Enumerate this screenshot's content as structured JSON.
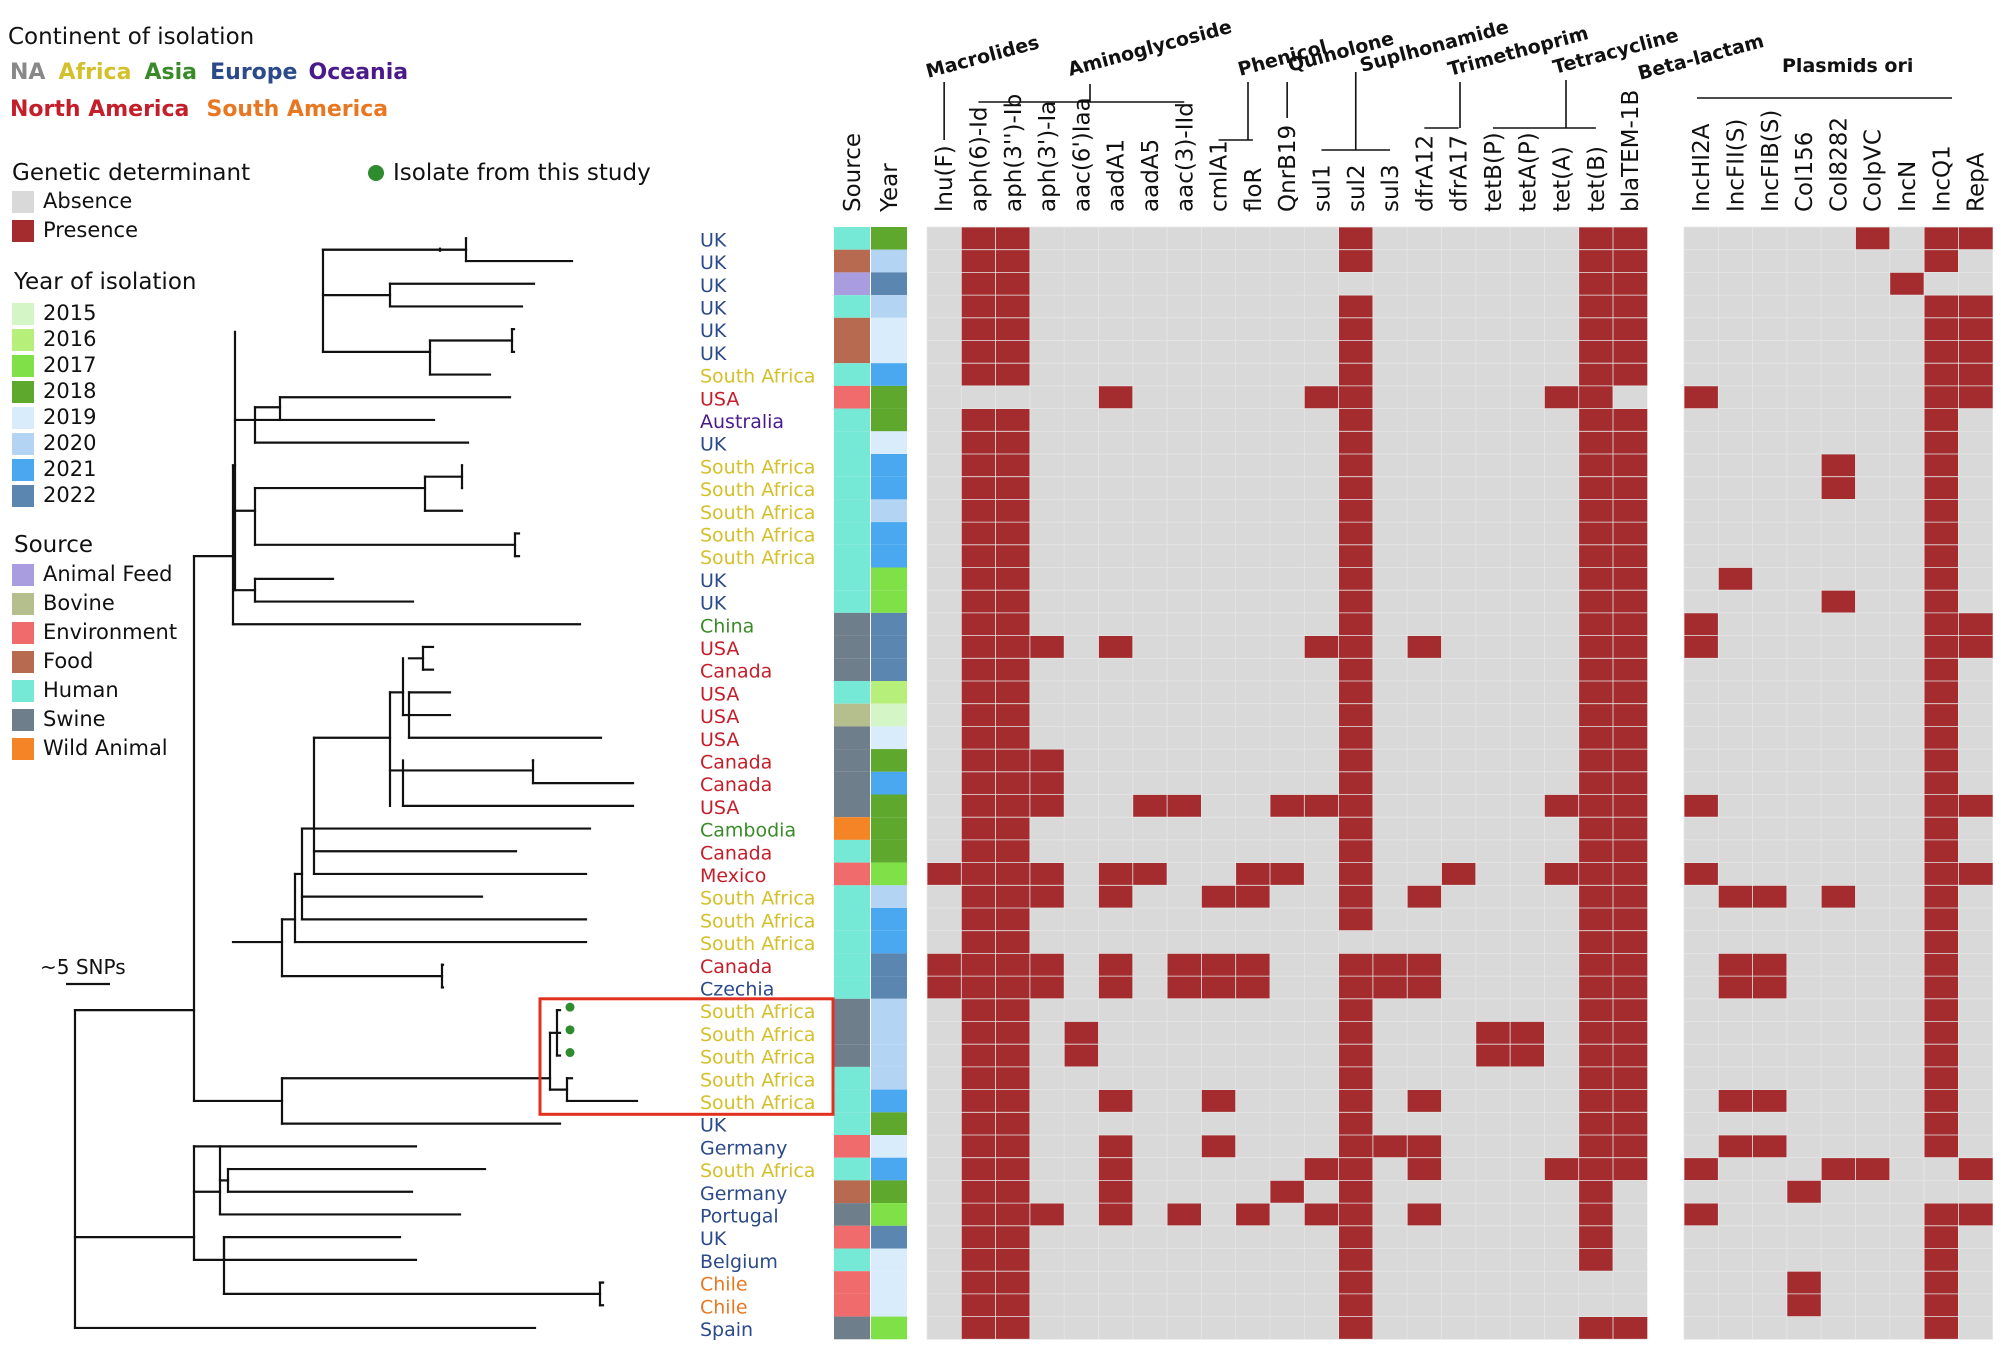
{
  "legend": {
    "continent_title": "Continent of isolation",
    "continents": [
      {
        "name": "NA",
        "color": "#888888"
      },
      {
        "name": "Africa",
        "color": "#d4c02a"
      },
      {
        "name": "Asia",
        "color": "#3a8a2a"
      },
      {
        "name": "Europe",
        "color": "#2b4a8a"
      },
      {
        "name": "Oceania",
        "color": "#4a1a8a"
      },
      {
        "name": "North America",
        "color": "#c41e2a"
      },
      {
        "name": "South America",
        "color": "#e87722"
      }
    ],
    "determinant_title": "Genetic determinant",
    "determinants": [
      {
        "name": "Absence",
        "color": "#d9d9d9"
      },
      {
        "name": "Presence",
        "color": "#a42c2f"
      }
    ],
    "isolate_label": "Isolate from this study",
    "year_title": "Year of isolation",
    "years": [
      {
        "name": "2015",
        "color": "#d4f5c6"
      },
      {
        "name": "2016",
        "color": "#b6f07a"
      },
      {
        "name": "2017",
        "color": "#7fe048"
      },
      {
        "name": "2018",
        "color": "#5ea82e"
      },
      {
        "name": "2019",
        "color": "#d8ecfb"
      },
      {
        "name": "2020",
        "color": "#b4d4f4"
      },
      {
        "name": "2021",
        "color": "#4aa8f0"
      },
      {
        "name": "2022",
        "color": "#5a86b0"
      }
    ],
    "source_title": "Source",
    "sources": [
      {
        "name": "Animal Feed",
        "color": "#a99cdf"
      },
      {
        "name": "Bovine",
        "color": "#b5bf8e"
      },
      {
        "name": "Environment",
        "color": "#f06b6b"
      },
      {
        "name": "Food",
        "color": "#b86a50"
      },
      {
        "name": "Human",
        "color": "#76e8d6"
      },
      {
        "name": "Swine",
        "color": "#6e7e8a"
      },
      {
        "name": "Wild Animal",
        "color": "#f58426"
      }
    ],
    "scale_label": "~5 SNPs"
  },
  "heatmap": {
    "col_source_label": "Source",
    "col_year_label": "Year",
    "genes": [
      "lnu(F)",
      "aph(6)-Id",
      "aph(3'')-Ib",
      "aph(3')-Ia",
      "aac(6')Iaa",
      "aadA1",
      "aadA5",
      "aac(3)-IId",
      "cmlA1",
      "floR",
      "QnrB19",
      "sul1",
      "sul2",
      "sul3",
      "dfrA12",
      "dfrA17",
      "tetB(P)",
      "tetA(P)",
      "tet(A)",
      "tet(B)",
      "blaTEM-1B",
      "IncHI2A",
      "IncFII(S)",
      "IncFIB(S)",
      "Col156",
      "Col8282",
      "ColpVC",
      "IncN",
      "IncQ1",
      "RepA"
    ],
    "groups": [
      {
        "label": "Macrolides"
      },
      {
        "label": "Aminoglycoside"
      },
      {
        "label": "Phenicol"
      },
      {
        "label": "Quinolone"
      },
      {
        "label": "Suplhonamide"
      },
      {
        "label": "Trimethoprim"
      },
      {
        "label": "Tetracycline"
      },
      {
        "label": "Beta-lactam"
      },
      {
        "label": "Plasmids ori"
      }
    ]
  },
  "isolates": [
    {
      "country": "UK",
      "continent": "Europe",
      "source": "Human",
      "year": "2018",
      "from_study": false,
      "genes": [
        1,
        2,
        12,
        19,
        20,
        26,
        28,
        29
      ]
    },
    {
      "country": "UK",
      "continent": "Europe",
      "source": "Food",
      "year": "2020",
      "from_study": false,
      "genes": [
        1,
        2,
        12,
        19,
        20,
        28
      ]
    },
    {
      "country": "UK",
      "continent": "Europe",
      "source": "Animal Feed",
      "year": "2022",
      "from_study": false,
      "genes": [
        1,
        2,
        19,
        20,
        27
      ]
    },
    {
      "country": "UK",
      "continent": "Europe",
      "source": "Human",
      "year": "2020",
      "from_study": false,
      "genes": [
        1,
        2,
        12,
        19,
        20,
        28,
        29
      ]
    },
    {
      "country": "UK",
      "continent": "Europe",
      "source": "Food",
      "year": "2019",
      "from_study": false,
      "genes": [
        1,
        2,
        12,
        19,
        20,
        28,
        29
      ]
    },
    {
      "country": "UK",
      "continent": "Europe",
      "source": "Food",
      "year": "2019",
      "from_study": false,
      "genes": [
        1,
        2,
        12,
        19,
        20,
        28,
        29
      ]
    },
    {
      "country": "South Africa",
      "continent": "Africa",
      "source": "Human",
      "year": "2021",
      "from_study": false,
      "genes": [
        1,
        2,
        12,
        19,
        20,
        28,
        29
      ]
    },
    {
      "country": "USA",
      "continent": "North America",
      "source": "Environment",
      "year": "2018",
      "from_study": false,
      "genes": [
        5,
        11,
        12,
        18,
        19,
        21,
        28,
        29
      ]
    },
    {
      "country": "Australia",
      "continent": "Oceania",
      "source": "Human",
      "year": "2018",
      "from_study": false,
      "genes": [
        1,
        2,
        12,
        19,
        20,
        28
      ]
    },
    {
      "country": "UK",
      "continent": "Europe",
      "source": "Human",
      "year": "2019",
      "from_study": false,
      "genes": [
        1,
        2,
        12,
        19,
        20,
        28
      ]
    },
    {
      "country": "South Africa",
      "continent": "Africa",
      "source": "Human",
      "year": "2021",
      "from_study": false,
      "genes": [
        1,
        2,
        12,
        19,
        20,
        25,
        28
      ]
    },
    {
      "country": "South Africa",
      "continent": "Africa",
      "source": "Human",
      "year": "2021",
      "from_study": false,
      "genes": [
        1,
        2,
        12,
        19,
        20,
        25,
        28
      ]
    },
    {
      "country": "South Africa",
      "continent": "Africa",
      "source": "Human",
      "year": "2020",
      "from_study": false,
      "genes": [
        1,
        2,
        12,
        19,
        20,
        28
      ]
    },
    {
      "country": "South Africa",
      "continent": "Africa",
      "source": "Human",
      "year": "2021",
      "from_study": false,
      "genes": [
        1,
        2,
        12,
        19,
        20,
        28
      ]
    },
    {
      "country": "South Africa",
      "continent": "Africa",
      "source": "Human",
      "year": "2021",
      "from_study": false,
      "genes": [
        1,
        2,
        12,
        19,
        20,
        28
      ]
    },
    {
      "country": "UK",
      "continent": "Europe",
      "source": "Human",
      "year": "2017",
      "from_study": false,
      "genes": [
        1,
        2,
        12,
        19,
        20,
        22,
        28
      ]
    },
    {
      "country": "UK",
      "continent": "Europe",
      "source": "Human",
      "year": "2017",
      "from_study": false,
      "genes": [
        1,
        2,
        12,
        19,
        20,
        25,
        28
      ]
    },
    {
      "country": "China",
      "continent": "Asia",
      "source": "Swine",
      "year": "2022",
      "from_study": false,
      "genes": [
        1,
        2,
        12,
        19,
        20,
        21,
        28,
        29
      ]
    },
    {
      "country": "USA",
      "continent": "North America",
      "source": "Swine",
      "year": "2022",
      "from_study": false,
      "genes": [
        1,
        2,
        3,
        5,
        11,
        12,
        14,
        19,
        20,
        21,
        28,
        29
      ]
    },
    {
      "country": "Canada",
      "continent": "North America",
      "source": "Swine",
      "year": "2022",
      "from_study": false,
      "genes": [
        1,
        2,
        12,
        19,
        20,
        28
      ]
    },
    {
      "country": "USA",
      "continent": "North America",
      "source": "Human",
      "year": "2016",
      "from_study": false,
      "genes": [
        1,
        2,
        12,
        19,
        20,
        28
      ]
    },
    {
      "country": "USA",
      "continent": "North America",
      "source": "Bovine",
      "year": "2015",
      "from_study": false,
      "genes": [
        1,
        2,
        12,
        19,
        20,
        28
      ]
    },
    {
      "country": "USA",
      "continent": "North America",
      "source": "Swine",
      "year": "2019",
      "from_study": false,
      "genes": [
        1,
        2,
        12,
        19,
        20,
        28
      ]
    },
    {
      "country": "Canada",
      "continent": "North America",
      "source": "Swine",
      "year": "2018",
      "from_study": false,
      "genes": [
        1,
        2,
        3,
        12,
        19,
        20,
        28
      ]
    },
    {
      "country": "Canada",
      "continent": "North America",
      "source": "Swine",
      "year": "2021",
      "from_study": false,
      "genes": [
        1,
        2,
        3,
        12,
        19,
        20,
        28
      ]
    },
    {
      "country": "USA",
      "continent": "North America",
      "source": "Swine",
      "year": "2018",
      "from_study": false,
      "genes": [
        1,
        2,
        3,
        6,
        7,
        10,
        11,
        12,
        18,
        19,
        20,
        21,
        28,
        29
      ]
    },
    {
      "country": "Cambodia",
      "continent": "Asia",
      "source": "Wild Animal",
      "year": "2018",
      "from_study": false,
      "genes": [
        1,
        2,
        12,
        19,
        20,
        28
      ]
    },
    {
      "country": "Canada",
      "continent": "North America",
      "source": "Human",
      "year": "2018",
      "from_study": false,
      "genes": [
        1,
        2,
        12,
        19,
        20,
        28
      ]
    },
    {
      "country": "Mexico",
      "continent": "North America",
      "source": "Environment",
      "year": "2017",
      "from_study": false,
      "genes": [
        0,
        1,
        2,
        3,
        5,
        6,
        9,
        10,
        12,
        15,
        18,
        19,
        20,
        21,
        28,
        29
      ]
    },
    {
      "country": "South Africa",
      "continent": "Africa",
      "source": "Human",
      "year": "2020",
      "from_study": false,
      "genes": [
        1,
        2,
        3,
        5,
        8,
        9,
        12,
        14,
        19,
        20,
        22,
        23,
        25,
        28
      ]
    },
    {
      "country": "South Africa",
      "continent": "Africa",
      "source": "Human",
      "year": "2021",
      "from_study": false,
      "genes": [
        1,
        2,
        12,
        19,
        20,
        28
      ]
    },
    {
      "country": "South Africa",
      "continent": "Africa",
      "source": "Human",
      "year": "2021",
      "from_study": false,
      "genes": [
        1,
        2,
        19,
        20,
        28
      ]
    },
    {
      "country": "Canada",
      "continent": "North America",
      "source": "Human",
      "year": "2022",
      "from_study": false,
      "genes": [
        0,
        1,
        2,
        3,
        5,
        7,
        8,
        9,
        12,
        13,
        14,
        19,
        20,
        22,
        23,
        28
      ]
    },
    {
      "country": "Czechia",
      "continent": "Europe",
      "source": "Human",
      "year": "2022",
      "from_study": false,
      "genes": [
        0,
        1,
        2,
        3,
        5,
        7,
        8,
        9,
        12,
        13,
        14,
        19,
        20,
        22,
        23,
        28
      ]
    },
    {
      "country": "South Africa",
      "continent": "Africa",
      "source": "Swine",
      "year": "2020",
      "from_study": true,
      "genes": [
        1,
        2,
        12,
        19,
        20,
        28
      ]
    },
    {
      "country": "South Africa",
      "continent": "Africa",
      "source": "Swine",
      "year": "2020",
      "from_study": true,
      "genes": [
        1,
        2,
        4,
        12,
        16,
        17,
        19,
        20,
        28
      ]
    },
    {
      "country": "South Africa",
      "continent": "Africa",
      "source": "Swine",
      "year": "2020",
      "from_study": true,
      "genes": [
        1,
        2,
        4,
        12,
        16,
        17,
        19,
        20,
        28
      ]
    },
    {
      "country": "South Africa",
      "continent": "Africa",
      "source": "Human",
      "year": "2020",
      "from_study": false,
      "genes": [
        1,
        2,
        12,
        19,
        20,
        28
      ]
    },
    {
      "country": "South Africa",
      "continent": "Africa",
      "source": "Human",
      "year": "2021",
      "from_study": false,
      "genes": [
        1,
        2,
        5,
        8,
        12,
        14,
        19,
        20,
        22,
        23,
        28
      ]
    },
    {
      "country": "UK",
      "continent": "Europe",
      "source": "Human",
      "year": "2018",
      "from_study": false,
      "genes": [
        1,
        2,
        12,
        19,
        20,
        28
      ]
    },
    {
      "country": "Germany",
      "continent": "Europe",
      "source": "Environment",
      "year": "2019",
      "from_study": false,
      "genes": [
        1,
        2,
        5,
        8,
        12,
        13,
        14,
        19,
        20,
        22,
        23,
        28
      ]
    },
    {
      "country": "South Africa",
      "continent": "Africa",
      "source": "Human",
      "year": "2021",
      "from_study": false,
      "genes": [
        1,
        2,
        5,
        11,
        12,
        14,
        18,
        19,
        20,
        21,
        25,
        26,
        29
      ]
    },
    {
      "country": "Germany",
      "continent": "Europe",
      "source": "Food",
      "year": "2018",
      "from_study": false,
      "genes": [
        1,
        2,
        5,
        10,
        12,
        19,
        24
      ]
    },
    {
      "country": "Portugal",
      "continent": "Europe",
      "source": "Swine",
      "year": "2017",
      "from_study": false,
      "genes": [
        1,
        2,
        3,
        5,
        7,
        9,
        11,
        12,
        14,
        19,
        21,
        28,
        29
      ]
    },
    {
      "country": "UK",
      "continent": "Europe",
      "source": "Environment",
      "year": "2022",
      "from_study": false,
      "genes": [
        1,
        2,
        12,
        19,
        28
      ]
    },
    {
      "country": "Belgium",
      "continent": "Europe",
      "source": "Human",
      "year": "2019",
      "from_study": false,
      "genes": [
        1,
        2,
        12,
        19,
        28
      ]
    },
    {
      "country": "Chile",
      "continent": "South America",
      "source": "Environment",
      "year": "2019",
      "from_study": false,
      "genes": [
        1,
        2,
        12,
        24,
        28
      ]
    },
    {
      "country": "Chile",
      "continent": "South America",
      "source": "Environment",
      "year": "2019",
      "from_study": false,
      "genes": [
        1,
        2,
        12,
        24,
        28
      ]
    },
    {
      "country": "Spain",
      "continent": "Europe",
      "source": "Swine",
      "year": "2017",
      "from_study": false,
      "genes": [
        1,
        2,
        12,
        19,
        20,
        28
      ]
    }
  ]
}
